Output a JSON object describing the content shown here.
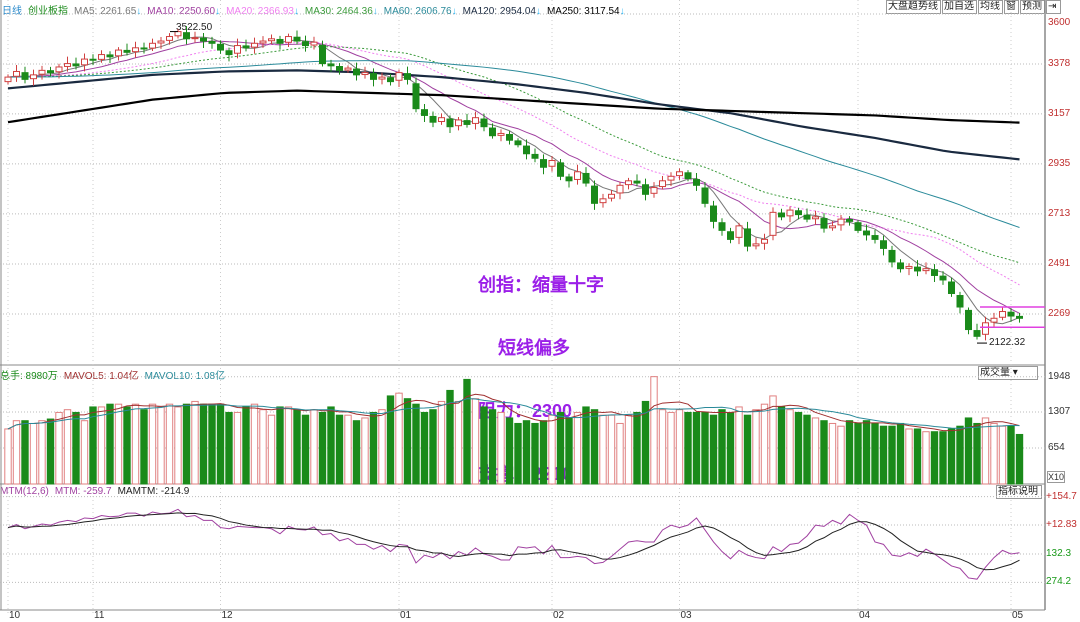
{
  "legend": {
    "period": "日线",
    "name": "创业板指",
    "items": [
      {
        "label": "MA5: 2261.65",
        "color": "#777777"
      },
      {
        "label": "MA10: 2250.60",
        "color": "#a040a0"
      },
      {
        "label": "MA20: 2366.93",
        "color": "#f080f0"
      },
      {
        "label": "MA30: 2464.36",
        "color": "#3a9a3a"
      },
      {
        "label": "MA60: 2606.76",
        "color": "#2a8a9a"
      },
      {
        "label": "MA120: 2954.04",
        "color": "#1a2a40"
      },
      {
        "label": "MA250: 3117.54",
        "color": "#000000"
      }
    ]
  },
  "toolbar": [
    "大盘趋势线",
    "加自选",
    "均线",
    "窗",
    "预测",
    "⇥"
  ],
  "volume_legend": {
    "total": "总手: 8980万",
    "mavol5": "MAVOL5: 1.04亿",
    "mavol10": "MAVOL10: 1.08亿",
    "selector": "成交量 ▾",
    "unit": "X10"
  },
  "mtm_legend": {
    "mtm_params": "MTM(12,6)",
    "mtm": "MTM: -259.7",
    "mamtm": "MAMTM: -214.9",
    "explain": "指标说明"
  },
  "annotation": [
    "创指：缩量十字",
    "    短线偏多",
    "阻力：2300",
    "支撑：2210"
  ],
  "colors": {
    "up": "#d04040",
    "down": "#1a8a1a",
    "annotation": "#9b1fe8",
    "level_line": "#e040e0"
  },
  "chart_data": {
    "type": "candlestick",
    "price_ticks": [
      3600,
      3378,
      3157,
      2935,
      2713,
      2491,
      2269
    ],
    "price_range": [
      2122,
      3600
    ],
    "x_ticks": [
      {
        "label": "10",
        "index": 0
      },
      {
        "label": "11",
        "index": 10
      },
      {
        "label": "12",
        "index": 25
      },
      {
        "label": "01",
        "index": 46
      },
      {
        "label": "02",
        "index": 64
      },
      {
        "label": "03",
        "index": 79
      },
      {
        "label": "04",
        "index": 100
      },
      {
        "label": "05",
        "index": 118
      }
    ],
    "first_open": 3300,
    "close": [
      3320,
      3345,
      3310,
      3330,
      3350,
      3340,
      3365,
      3380,
      3370,
      3400,
      3395,
      3420,
      3410,
      3440,
      3430,
      3450,
      3445,
      3470,
      3480,
      3500,
      3522,
      3490,
      3495,
      3480,
      3470,
      3440,
      3420,
      3460,
      3450,
      3470,
      3480,
      3490,
      3470,
      3500,
      3480,
      3460,
      3475,
      3380,
      3370,
      3350,
      3360,
      3330,
      3340,
      3310,
      3320,
      3300,
      3340,
      3310,
      3180,
      3150,
      3120,
      3140,
      3100,
      3130,
      3110,
      3140,
      3100,
      3060,
      3070,
      3040,
      3020,
      2980,
      2960,
      2920,
      2950,
      2880,
      2860,
      2900,
      2850,
      2760,
      2780,
      2800,
      2840,
      2860,
      2850,
      2800,
      2830,
      2860,
      2880,
      2900,
      2870,
      2840,
      2760,
      2680,
      2640,
      2600,
      2660,
      2570,
      2580,
      2600,
      2720,
      2700,
      2730,
      2710,
      2690,
      2700,
      2650,
      2660,
      2690,
      2680,
      2640,
      2620,
      2600,
      2560,
      2500,
      2470,
      2480,
      2460,
      2470,
      2440,
      2420,
      2360,
      2300,
      2200,
      2170,
      2230,
      2250,
      2280,
      2260,
      2250
    ],
    "high_label": {
      "value": "3522.50",
      "index": 20
    },
    "low_label": {
      "value": "2122.32",
      "index": 114
    },
    "ma120": [
      3270,
      3300,
      3330,
      3345,
      3350,
      3340,
      3320,
      3290,
      3250,
      3200,
      3160,
      3100,
      3050,
      2990,
      2955
    ],
    "ma250": [
      3120,
      3170,
      3220,
      3250,
      3260,
      3250,
      3240,
      3220,
      3200,
      3180,
      3170,
      3160,
      3150,
      3130,
      3118
    ],
    "levels": [
      2300,
      2210
    ],
    "volume_ticks": [
      1948,
      1307,
      654
    ],
    "volume": [
      1000,
      1150,
      1150,
      1100,
      1150,
      1180,
      1300,
      1350,
      1300,
      1150,
      1400,
      1400,
      1450,
      1450,
      1400,
      1450,
      1350,
      1450,
      1400,
      1450,
      1400,
      1450,
      1500,
      1450,
      1450,
      1450,
      1300,
      1300,
      1400,
      1450,
      1350,
      1250,
      1400,
      1400,
      1350,
      1250,
      1350,
      1300,
      1400,
      1250,
      1250,
      1150,
      1200,
      1300,
      1350,
      1600,
      1650,
      1550,
      1450,
      1300,
      1350,
      1500,
      1700,
      1500,
      1900,
      1550,
      1400,
      1350,
      1300,
      1200,
      1100,
      1150,
      1100,
      1150,
      1250,
      1300,
      1200,
      1300,
      1400,
      1350,
      1250,
      1250,
      1100,
      1250,
      1300,
      1500,
      1950,
      1350,
      1300,
      1350,
      1300,
      1300,
      1300,
      1250,
      1350,
      1300,
      1400,
      1250,
      1350,
      1450,
      1600,
      1400,
      1350,
      1300,
      1250,
      1200,
      1150,
      1100,
      1050,
      1150,
      1100,
      1150,
      1100,
      1050,
      1050,
      1100,
      1000,
      1000,
      950,
      950,
      950,
      1000,
      1050,
      1200,
      1100,
      1200,
      1100,
      1050,
      1050,
      900
    ],
    "mtm_ticks": [
      "+154.7",
      "+12.83",
      "132.3",
      "274.2"
    ]
  }
}
